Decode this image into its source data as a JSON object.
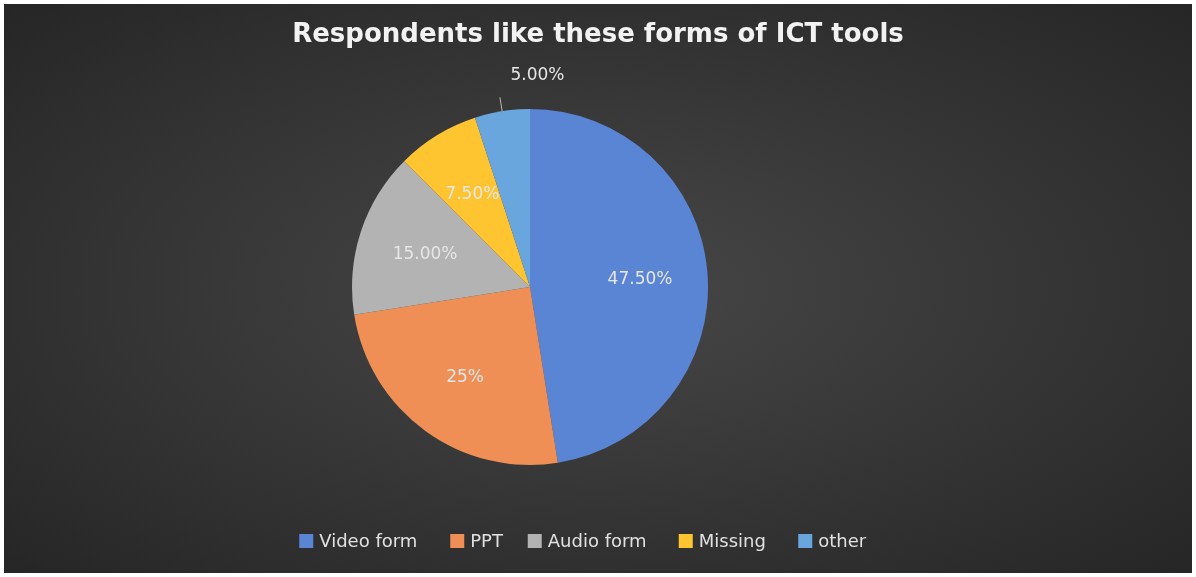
{
  "chart_data": {
    "type": "pie",
    "title": "Respondents like these forms of ICT tools",
    "categories": [
      "Video form",
      "PPT",
      "Audio form",
      "Missing",
      "other"
    ],
    "values": [
      47.5,
      25,
      15,
      7.5,
      5
    ],
    "colors": [
      "#5a85d4",
      "#ef8f55",
      "#b3b3b3",
      "#ffc530",
      "#6aa6de"
    ],
    "value_labels": [
      "47.50%",
      "25%",
      "15.00%",
      "7.50%",
      "5.00%"
    ],
    "legend": "bottom"
  }
}
